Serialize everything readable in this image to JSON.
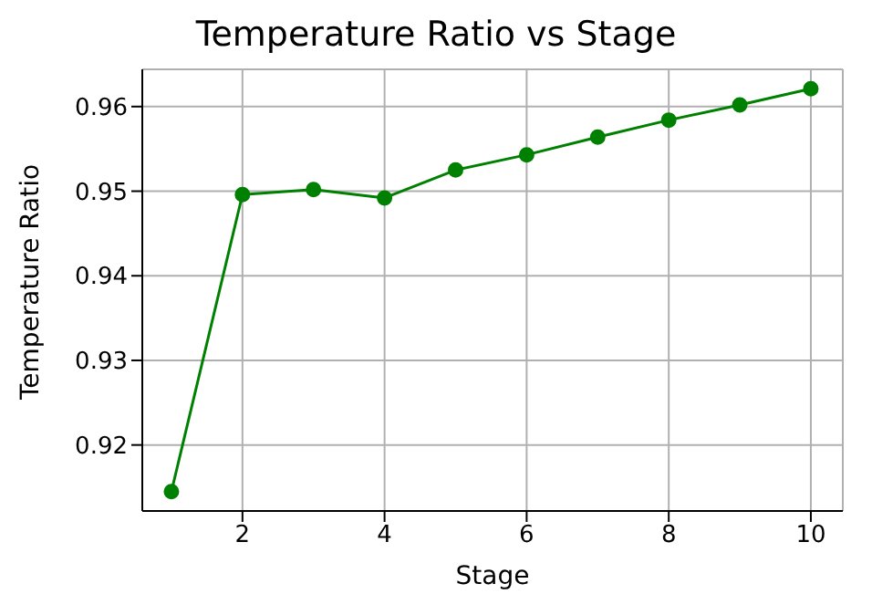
{
  "chart_data": {
    "type": "line",
    "title": "Temperature Ratio vs Stage",
    "xlabel": "Stage",
    "ylabel": "Temperature Ratio",
    "x": [
      1,
      2,
      3,
      4,
      5,
      6,
      7,
      8,
      9,
      10
    ],
    "series": [
      {
        "color": "#008000",
        "values": [
          0.9145,
          0.9496,
          0.9502,
          0.9492,
          0.9525,
          0.9543,
          0.9564,
          0.9584,
          0.9602,
          0.9621
        ]
      }
    ],
    "xlim": [
      0.59,
      10.45
    ],
    "xticks": [
      2,
      4,
      6,
      8,
      10
    ],
    "ylim": [
      0.9122,
      0.9644
    ],
    "yticks": [
      0.92,
      0.93,
      0.94,
      0.95,
      0.96
    ],
    "grid": true,
    "marker": "circle",
    "line_style": "solid",
    "legend": false
  }
}
